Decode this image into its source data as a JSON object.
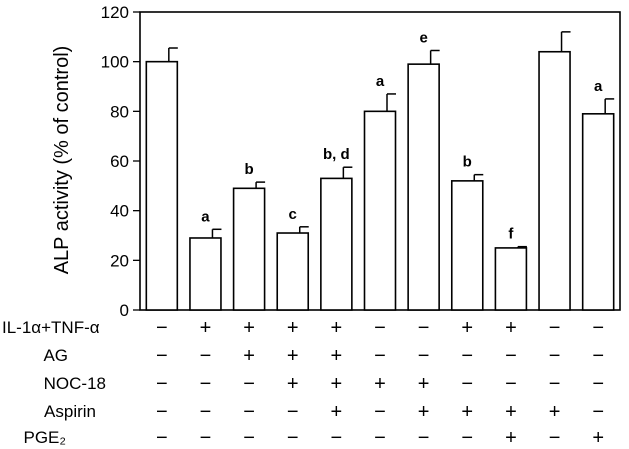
{
  "chart_data": {
    "type": "bar",
    "ylabel": "ALP activity (% of control)",
    "ylim": [
      0,
      120
    ],
    "yticks": [
      0,
      20,
      40,
      60,
      80,
      100,
      120
    ],
    "grid": false,
    "bar_fill": "#ffffff",
    "bar_stroke": "#000000",
    "values": [
      100,
      29,
      49,
      31,
      53,
      80,
      99,
      52,
      25,
      104,
      79
    ],
    "errors": [
      5.5,
      3.5,
      2.5,
      2.5,
      4.5,
      7,
      5.5,
      2.5,
      0.5,
      8,
      6
    ],
    "annotations": [
      "",
      "a",
      "b",
      "c",
      "b, d",
      "a",
      "e",
      "b",
      "f",
      "",
      "a"
    ],
    "treatments": [
      {
        "label": "IL-1α+TNF-α",
        "signs": [
          "−",
          "+",
          "+",
          "+",
          "+",
          "−",
          "−",
          "+",
          "+",
          "−",
          "−"
        ]
      },
      {
        "label": "AG",
        "signs": [
          "−",
          "−",
          "+",
          "+",
          "+",
          "−",
          "−",
          "−",
          "−",
          "−",
          "−"
        ]
      },
      {
        "label": "NOC-18",
        "signs": [
          "−",
          "−",
          "−",
          "+",
          "+",
          "+",
          "+",
          "−",
          "−",
          "−",
          "−"
        ]
      },
      {
        "label": "Aspirin",
        "signs": [
          "−",
          "−",
          "−",
          "−",
          "+",
          "−",
          "+",
          "+",
          "+",
          "+",
          "−"
        ]
      },
      {
        "label": "PGE₂",
        "signs": [
          "−",
          "−",
          "−",
          "−",
          "−",
          "−",
          "−",
          "−",
          "+",
          "−",
          "+"
        ]
      }
    ]
  }
}
